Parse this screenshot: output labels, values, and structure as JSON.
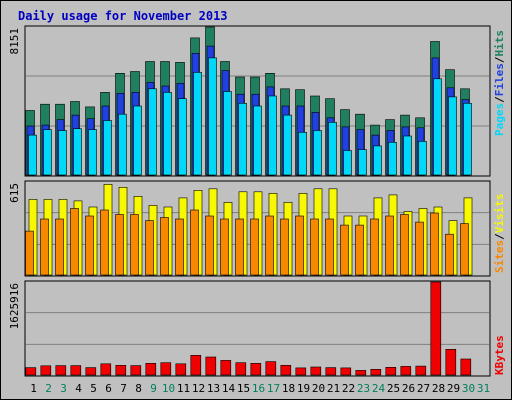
{
  "chart_data": [
    {
      "type": "bar",
      "panel": "hits-files-pages",
      "title": "Daily usage for November 2013",
      "ylim": [
        0,
        8151
      ],
      "ymax_label": "8151",
      "categories": [
        "1",
        "2",
        "3",
        "4",
        "5",
        "6",
        "7",
        "8",
        "9",
        "10",
        "11",
        "12",
        "13",
        "14",
        "15",
        "16",
        "17",
        "18",
        "19",
        "20",
        "21",
        "22",
        "23",
        "24",
        "25",
        "26",
        "27",
        "28",
        "29",
        "30",
        "31"
      ],
      "series": [
        {
          "name": "Hits",
          "color": "#1f7f5f",
          "values": [
            3550,
            3900,
            3900,
            4050,
            3750,
            4550,
            5600,
            5700,
            6250,
            6250,
            6200,
            7550,
            8151,
            6250,
            5400,
            5400,
            5600,
            4750,
            4700,
            4350,
            4200,
            3600,
            3350,
            2750,
            3050,
            3300,
            3150,
            7350,
            5800,
            4750,
            0
          ]
        },
        {
          "name": "Files",
          "color": "#2040e0",
          "values": [
            2700,
            2750,
            3050,
            3300,
            3100,
            3800,
            4500,
            4550,
            5100,
            4900,
            5050,
            6700,
            7100,
            5750,
            4450,
            4450,
            4850,
            3800,
            3800,
            3450,
            3150,
            2650,
            2500,
            2200,
            2450,
            2650,
            2600,
            6450,
            4800,
            4150,
            0
          ]
        },
        {
          "name": "Pages",
          "color": "#00d8f8",
          "values": [
            2200,
            2500,
            2450,
            2550,
            2500,
            3000,
            3350,
            3800,
            4750,
            4550,
            4200,
            5650,
            6450,
            4600,
            3950,
            3800,
            4350,
            3300,
            2350,
            2450,
            2900,
            1350,
            1400,
            1600,
            1800,
            2150,
            1850,
            5300,
            4300,
            3950,
            0
          ]
        }
      ]
    },
    {
      "type": "bar",
      "panel": "visits-sites",
      "ylim": [
        0,
        615
      ],
      "ymax_label": "615",
      "categories": [
        "1",
        "2",
        "3",
        "4",
        "5",
        "6",
        "7",
        "8",
        "9",
        "10",
        "11",
        "12",
        "13",
        "14",
        "15",
        "16",
        "17",
        "18",
        "19",
        "20",
        "21",
        "22",
        "23",
        "24",
        "25",
        "26",
        "27",
        "28",
        "29",
        "30",
        "31"
      ],
      "series": [
        {
          "name": "Visits",
          "color": "#f8f800",
          "values": [
            500,
            500,
            500,
            490,
            450,
            600,
            580,
            520,
            460,
            450,
            510,
            560,
            570,
            480,
            550,
            550,
            540,
            480,
            540,
            570,
            570,
            390,
            390,
            510,
            530,
            420,
            440,
            450,
            360,
            510,
            0
          ]
        },
        {
          "name": "Sites",
          "color": "#f88800",
          "values": [
            290,
            370,
            370,
            440,
            390,
            430,
            400,
            400,
            360,
            380,
            370,
            430,
            390,
            370,
            370,
            370,
            390,
            370,
            390,
            370,
            370,
            330,
            330,
            370,
            390,
            400,
            350,
            410,
            270,
            340,
            0
          ]
        }
      ]
    },
    {
      "type": "bar",
      "panel": "kbytes",
      "ylim": [
        0,
        1625916
      ],
      "ymax_label": "1625916",
      "categories": [
        "1",
        "2",
        "3",
        "4",
        "5",
        "6",
        "7",
        "8",
        "9",
        "10",
        "11",
        "12",
        "13",
        "14",
        "15",
        "16",
        "17",
        "18",
        "19",
        "20",
        "21",
        "22",
        "23",
        "24",
        "25",
        "26",
        "27",
        "28",
        "29",
        "30",
        "31"
      ],
      "series": [
        {
          "name": "KBytes",
          "color": "#f00000",
          "values": [
            130000,
            160000,
            165000,
            165000,
            130000,
            195000,
            170000,
            165000,
            205000,
            215000,
            195000,
            345000,
            315000,
            255000,
            215000,
            205000,
            235000,
            170000,
            125000,
            140000,
            130000,
            125000,
            80000,
            100000,
            135000,
            150000,
            155000,
            1625916,
            450000,
            280000,
            0
          ]
        }
      ]
    }
  ],
  "legend": {
    "top": [
      {
        "text": "Pages",
        "color": "#00d8f8"
      },
      {
        "text": "/",
        "color": "#000000"
      },
      {
        "text": "Files",
        "color": "#2040e0"
      },
      {
        "text": "/",
        "color": "#000000"
      },
      {
        "text": "Hits",
        "color": "#1f7f5f"
      }
    ],
    "middle": [
      {
        "text": "Sites",
        "color": "#f88800"
      },
      {
        "text": "/",
        "color": "#000000"
      },
      {
        "text": "Visits",
        "color": "#f8f800"
      }
    ],
    "bottom": [
      {
        "text": "KBytes",
        "color": "#f00000"
      }
    ]
  },
  "weekend_days": [
    "2",
    "3",
    "9",
    "10",
    "16",
    "17",
    "23",
    "24",
    "30",
    "31"
  ],
  "colors": {
    "title": "#0000c0",
    "weekday_label": "#000000",
    "weekend_label": "#00805f",
    "panel_bg": "#c0c0c0",
    "gridline": "#808080"
  }
}
